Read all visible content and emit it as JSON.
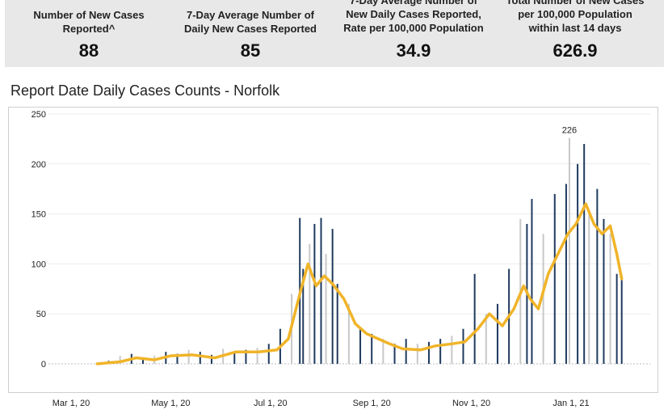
{
  "stats": [
    {
      "label_lines": [
        "Number of New Cases",
        "Reported^"
      ],
      "value": "88"
    },
    {
      "label_lines": [
        "7-Day Average Number of",
        "Daily New Cases Reported"
      ],
      "value": "85"
    },
    {
      "label_lines": [
        "7-Day Average Number of",
        "New Daily Cases Reported,",
        "Rate per 100,000 Population"
      ],
      "value": "34.9"
    },
    {
      "label_lines": [
        "Total Number of New Cases",
        "per 100,000 Population",
        "within last 14 days"
      ],
      "value": "626.9"
    }
  ],
  "chart_data": {
    "type": "bar",
    "title": "Report Date Daily Cases Counts - Norfolk",
    "xlabel": "",
    "ylabel": "",
    "ylim": [
      0,
      250
    ],
    "yticks": [
      0,
      50,
      100,
      150,
      200,
      250
    ],
    "xticks": [
      {
        "date": "2020-03-01",
        "label": "Mar 1, 20"
      },
      {
        "date": "2020-05-01",
        "label": "May 1, 20"
      },
      {
        "date": "2020-07-01",
        "label": "Jul 1, 20"
      },
      {
        "date": "2020-09-01",
        "label": "Sep 1, 20"
      },
      {
        "date": "2020-11-01",
        "label": "Nov 1, 20"
      },
      {
        "date": "2021-01-01",
        "label": "Jan 1, 21"
      }
    ],
    "annotation": {
      "date": "2020-12-31",
      "value": 226,
      "label": "226"
    },
    "grid": true,
    "colors": {
      "bars_weekday": "#1f3a5f",
      "bars_weekend": "#c8c8c8",
      "average_line": "#f0b429"
    },
    "series": [
      {
        "role": "daily_bars",
        "points": [
          [
            "2020-03-17",
            1
          ],
          [
            "2020-03-24",
            3
          ],
          [
            "2020-03-31",
            8
          ],
          [
            "2020-04-07",
            10
          ],
          [
            "2020-04-14",
            6
          ],
          [
            "2020-04-21",
            8
          ],
          [
            "2020-04-28",
            12
          ],
          [
            "2020-05-05",
            10
          ],
          [
            "2020-05-12",
            14
          ],
          [
            "2020-05-19",
            12
          ],
          [
            "2020-05-26",
            9
          ],
          [
            "2020-06-02",
            15
          ],
          [
            "2020-06-09",
            12
          ],
          [
            "2020-06-16",
            14
          ],
          [
            "2020-06-23",
            16
          ],
          [
            "2020-06-30",
            20
          ],
          [
            "2020-07-07",
            35
          ],
          [
            "2020-07-14",
            70
          ],
          [
            "2020-07-19",
            146
          ],
          [
            "2020-07-21",
            95
          ],
          [
            "2020-07-25",
            120
          ],
          [
            "2020-07-28",
            140
          ],
          [
            "2020-08-01",
            146
          ],
          [
            "2020-08-04",
            110
          ],
          [
            "2020-08-08",
            135
          ],
          [
            "2020-08-11",
            80
          ],
          [
            "2020-08-18",
            60
          ],
          [
            "2020-08-25",
            35
          ],
          [
            "2020-09-01",
            30
          ],
          [
            "2020-09-08",
            25
          ],
          [
            "2020-09-15",
            20
          ],
          [
            "2020-09-22",
            25
          ],
          [
            "2020-09-29",
            20
          ],
          [
            "2020-10-06",
            22
          ],
          [
            "2020-10-13",
            25
          ],
          [
            "2020-10-20",
            28
          ],
          [
            "2020-10-27",
            35
          ],
          [
            "2020-11-03",
            90
          ],
          [
            "2020-11-10",
            50
          ],
          [
            "2020-11-17",
            60
          ],
          [
            "2020-11-24",
            95
          ],
          [
            "2020-12-01",
            145
          ],
          [
            "2020-12-05",
            140
          ],
          [
            "2020-12-08",
            165
          ],
          [
            "2020-12-15",
            130
          ],
          [
            "2020-12-22",
            170
          ],
          [
            "2020-12-29",
            180
          ],
          [
            "2020-12-31",
            226
          ],
          [
            "2021-01-05",
            200
          ],
          [
            "2021-01-09",
            220
          ],
          [
            "2021-01-12",
            150
          ],
          [
            "2021-01-17",
            175
          ],
          [
            "2021-01-21",
            145
          ],
          [
            "2021-01-25",
            130
          ],
          [
            "2021-01-29",
            90
          ],
          [
            "2021-02-01",
            88
          ]
        ]
      },
      {
        "role": "seven_day_average",
        "points": [
          [
            "2020-03-17",
            0
          ],
          [
            "2020-03-31",
            2
          ],
          [
            "2020-04-10",
            6
          ],
          [
            "2020-04-21",
            4
          ],
          [
            "2020-05-01",
            8
          ],
          [
            "2020-05-14",
            9
          ],
          [
            "2020-05-28",
            6
          ],
          [
            "2020-06-10",
            12
          ],
          [
            "2020-06-24",
            12
          ],
          [
            "2020-07-05",
            14
          ],
          [
            "2020-07-12",
            25
          ],
          [
            "2020-07-19",
            70
          ],
          [
            "2020-07-24",
            100
          ],
          [
            "2020-07-29",
            78
          ],
          [
            "2020-08-03",
            88
          ],
          [
            "2020-08-08",
            80
          ],
          [
            "2020-08-15",
            65
          ],
          [
            "2020-08-22",
            40
          ],
          [
            "2020-08-29",
            30
          ],
          [
            "2020-09-05",
            25
          ],
          [
            "2020-09-12",
            20
          ],
          [
            "2020-09-20",
            15
          ],
          [
            "2020-10-01",
            14
          ],
          [
            "2020-10-10",
            18
          ],
          [
            "2020-10-20",
            20
          ],
          [
            "2020-10-28",
            22
          ],
          [
            "2020-11-05",
            35
          ],
          [
            "2020-11-12",
            50
          ],
          [
            "2020-11-20",
            38
          ],
          [
            "2020-11-27",
            55
          ],
          [
            "2020-12-03",
            78
          ],
          [
            "2020-12-07",
            65
          ],
          [
            "2020-12-12",
            55
          ],
          [
            "2020-12-18",
            90
          ],
          [
            "2020-12-24",
            110
          ],
          [
            "2020-12-30",
            130
          ],
          [
            "2021-01-04",
            140
          ],
          [
            "2021-01-10",
            160
          ],
          [
            "2021-01-15",
            140
          ],
          [
            "2021-01-20",
            130
          ],
          [
            "2021-01-25",
            138
          ],
          [
            "2021-01-29",
            110
          ],
          [
            "2021-02-01",
            85
          ]
        ]
      }
    ]
  }
}
